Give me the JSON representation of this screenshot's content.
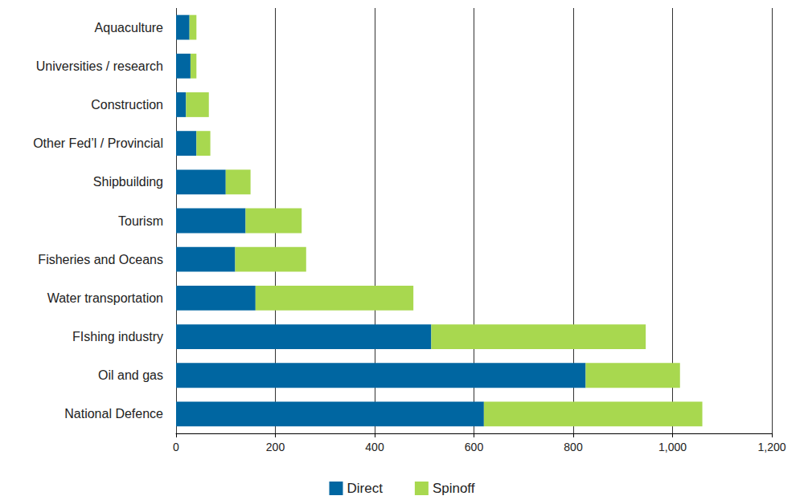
{
  "chart_data": {
    "type": "bar",
    "orientation": "horizontal",
    "stacked": true,
    "grid": true,
    "legend": "bottom",
    "categories": [
      "Aquaculture",
      "Universities / research",
      "Construction",
      "Other Fed’l / Provincial",
      "Shipbuilding",
      "Tourism",
      "Fisheries and Oceans",
      "Water transportation",
      "FIshing industry",
      "Oil and gas",
      "National Defence"
    ],
    "series": [
      {
        "name": "Direct",
        "color": "#0066a1",
        "values": [
          27,
          29,
          20,
          41,
          100,
          140,
          119,
          160,
          514,
          825,
          620
        ]
      },
      {
        "name": "Spinoff",
        "color": "#a8d84f",
        "values": [
          14,
          12,
          46,
          28,
          50,
          113,
          143,
          318,
          432,
          190,
          440
        ]
      }
    ],
    "xlim": [
      0,
      1200
    ],
    "xticks": [
      0,
      200,
      400,
      600,
      800,
      {
        "value": 1000,
        "label": "1,000"
      },
      {
        "value": 1200,
        "label": "1,200"
      }
    ]
  }
}
